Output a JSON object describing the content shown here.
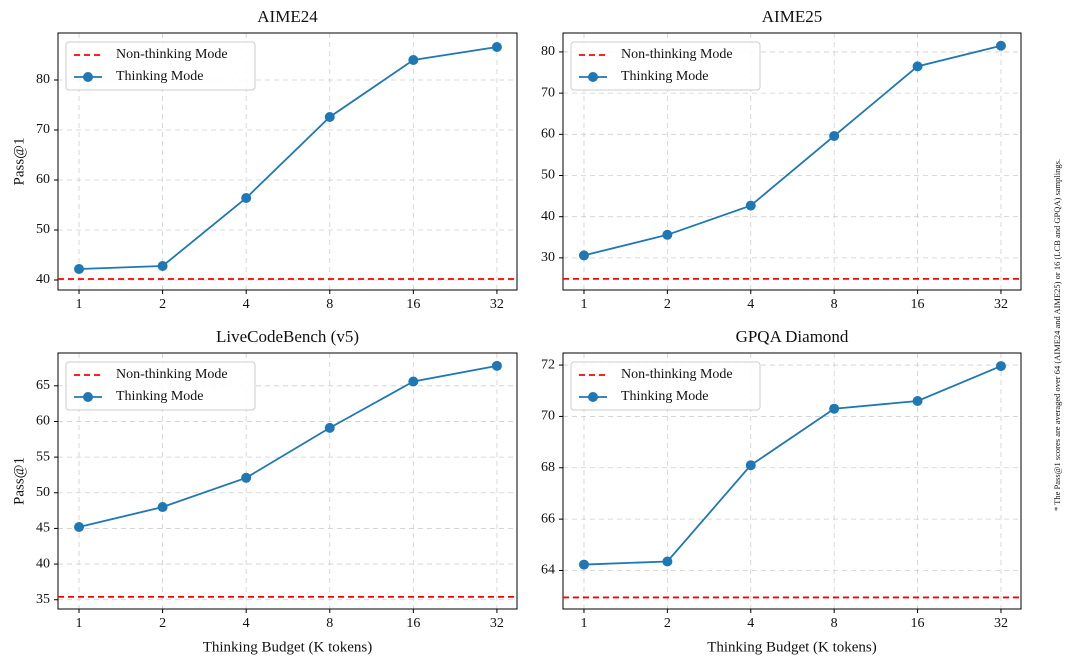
{
  "chart_data": [
    {
      "type": "line",
      "title": "AIME24",
      "ylabel": "Pass@1",
      "xscale": "log",
      "x": [
        1,
        2,
        4,
        8,
        16,
        32
      ],
      "xlim": [
        0.84,
        37.8
      ],
      "xticks": [
        1,
        2,
        4,
        8,
        16,
        32
      ],
      "ylim": [
        38,
        89.4
      ],
      "yticks": [
        40,
        50,
        60,
        70,
        80
      ],
      "grid": true,
      "legend": "upper left",
      "reference_line": {
        "name": "Non-thinking Mode",
        "value": 40.2,
        "color": "#ff0000"
      },
      "series": [
        {
          "name": "Thinking Mode",
          "color": "#1f77b4",
          "values": [
            42.2,
            42.8,
            56.4,
            72.6,
            84.0,
            86.6
          ]
        }
      ]
    },
    {
      "type": "line",
      "title": "AIME25",
      "xscale": "log",
      "x": [
        1,
        2,
        4,
        8,
        16,
        32
      ],
      "xlim": [
        0.84,
        37.8
      ],
      "xticks": [
        1,
        2,
        4,
        8,
        16,
        32
      ],
      "ylim": [
        22.2,
        84.6
      ],
      "yticks": [
        30,
        40,
        50,
        60,
        70,
        80
      ],
      "grid": true,
      "legend": "upper left",
      "reference_line": {
        "name": "Non-thinking Mode",
        "value": 24.9,
        "color": "#ff0000"
      },
      "series": [
        {
          "name": "Thinking Mode",
          "color": "#1f77b4",
          "values": [
            30.6,
            35.6,
            42.7,
            59.6,
            76.5,
            81.5
          ]
        }
      ]
    },
    {
      "type": "line",
      "title": "LiveCodeBench (v5)",
      "ylabel": "Pass@1",
      "xlabel": "Thinking Budget (K tokens)",
      "xscale": "log",
      "x": [
        1,
        2,
        4,
        8,
        16,
        32
      ],
      "xlim": [
        0.84,
        37.8
      ],
      "xticks": [
        1,
        2,
        4,
        8,
        16,
        32
      ],
      "ylim": [
        33.7,
        69.6
      ],
      "yticks": [
        35,
        40,
        45,
        50,
        55,
        60,
        65
      ],
      "grid": true,
      "legend": "upper left",
      "reference_line": {
        "name": "Non-thinking Mode",
        "value": 35.4,
        "color": "#ff0000"
      },
      "series": [
        {
          "name": "Thinking Mode",
          "color": "#1f77b4",
          "values": [
            45.2,
            48.0,
            52.1,
            59.1,
            65.6,
            67.8
          ]
        }
      ]
    },
    {
      "type": "line",
      "title": "GPQA Diamond",
      "xlabel": "Thinking Budget (K tokens)",
      "xscale": "log",
      "x": [
        1,
        2,
        4,
        8,
        16,
        32
      ],
      "xlim": [
        0.84,
        37.8
      ],
      "xticks": [
        1,
        2,
        4,
        8,
        16,
        32
      ],
      "ylim": [
        62.5,
        72.47
      ],
      "yticks": [
        64,
        66,
        68,
        70,
        72
      ],
      "grid": true,
      "legend": "upper left",
      "reference_line": {
        "name": "Non-thinking Mode",
        "value": 62.95,
        "color": "#ff0000"
      },
      "series": [
        {
          "name": "Thinking Mode",
          "color": "#1f77b4",
          "values": [
            64.23,
            64.35,
            68.1,
            70.3,
            70.6,
            71.96
          ]
        }
      ]
    }
  ],
  "footnote": "* The Pass@1 scores are averaged over 64 (AIME24 and AIME25) or 16 (LCB and GPQA) samplings."
}
